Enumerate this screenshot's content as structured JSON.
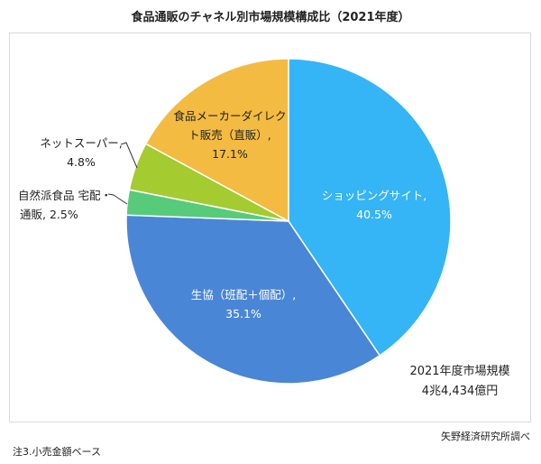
{
  "chart_data": {
    "type": "pie",
    "title": "食品通販のチャネル別市場規模構成比（2021年度）",
    "start": "12 o'clock, clockwise",
    "slices": [
      {
        "name": "ショッピングサイト",
        "value": 40.5,
        "label": "40.5%",
        "color": "#35b4f6"
      },
      {
        "name": "生協（班配＋個配）",
        "value": 35.1,
        "label": "35.1%",
        "color": "#4a86d6"
      },
      {
        "name": "自然派食品 宅配・通販",
        "value": 2.5,
        "label": "2.5%",
        "color": "#57cb79"
      },
      {
        "name": "ネットスーパー",
        "value": 4.8,
        "label": "4.8%",
        "color": "#a4cb2f"
      },
      {
        "name": "食品メーカーダイレクト販売（直販）",
        "value": 17.1,
        "label": "17.1%",
        "color": "#f3bb41"
      }
    ],
    "annotation": {
      "line1": "2021年度市場規模",
      "line2": "4兆4,434億円"
    }
  },
  "labels": {
    "shopping": {
      "l1": "ショッピングサイト,",
      "l2": "40.5%"
    },
    "coop": {
      "l1": "生協（班配＋個配）,",
      "l2": "35.1%"
    },
    "natural": {
      "l1": "自然派食品 宅配・",
      "l2": "通販, 2.5%"
    },
    "netsuper": {
      "l1": "ネットスーパー,",
      "l2": "4.8%"
    },
    "maker": {
      "l1": "食品メーカーダイレク",
      "l2": "ト販売（直販）,",
      "l3": "17.1%"
    }
  },
  "source": "矢野経済研究所調べ",
  "footnote": "注3.小売金額ベース"
}
